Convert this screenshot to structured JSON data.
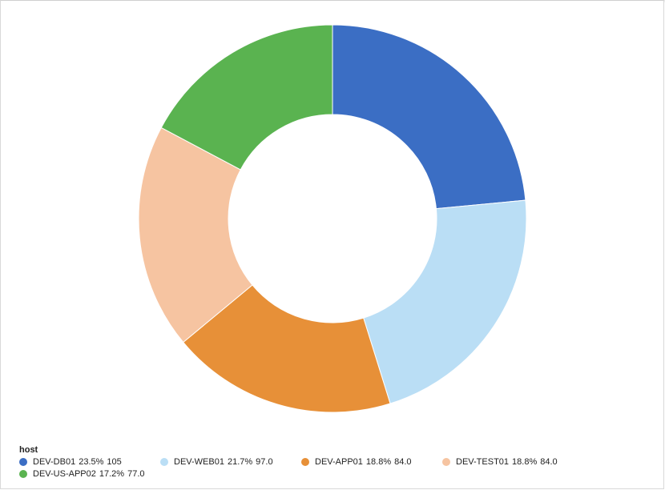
{
  "chart_data": {
    "type": "pie",
    "subtype": "donut",
    "legend_title": "host",
    "legend_position": "bottom-left",
    "slices": [
      {
        "name": "DEV-DB01",
        "percent": "23.5%",
        "value_label": "105",
        "value": 105,
        "color": "#3b6ec4"
      },
      {
        "name": "DEV-WEB01",
        "percent": "21.7%",
        "value_label": "97.0",
        "value": 97,
        "color": "#badef5"
      },
      {
        "name": "DEV-APP01",
        "percent": "18.8%",
        "value_label": "84.0",
        "value": 84,
        "color": "#e79038"
      },
      {
        "name": "DEV-TEST01",
        "percent": "18.8%",
        "value_label": "84.0",
        "value": 84,
        "color": "#f6c4a1"
      },
      {
        "name": "DEV-US-APP02",
        "percent": "17.2%",
        "value_label": "77.0",
        "value": 77,
        "color": "#5ab350"
      }
    ]
  }
}
